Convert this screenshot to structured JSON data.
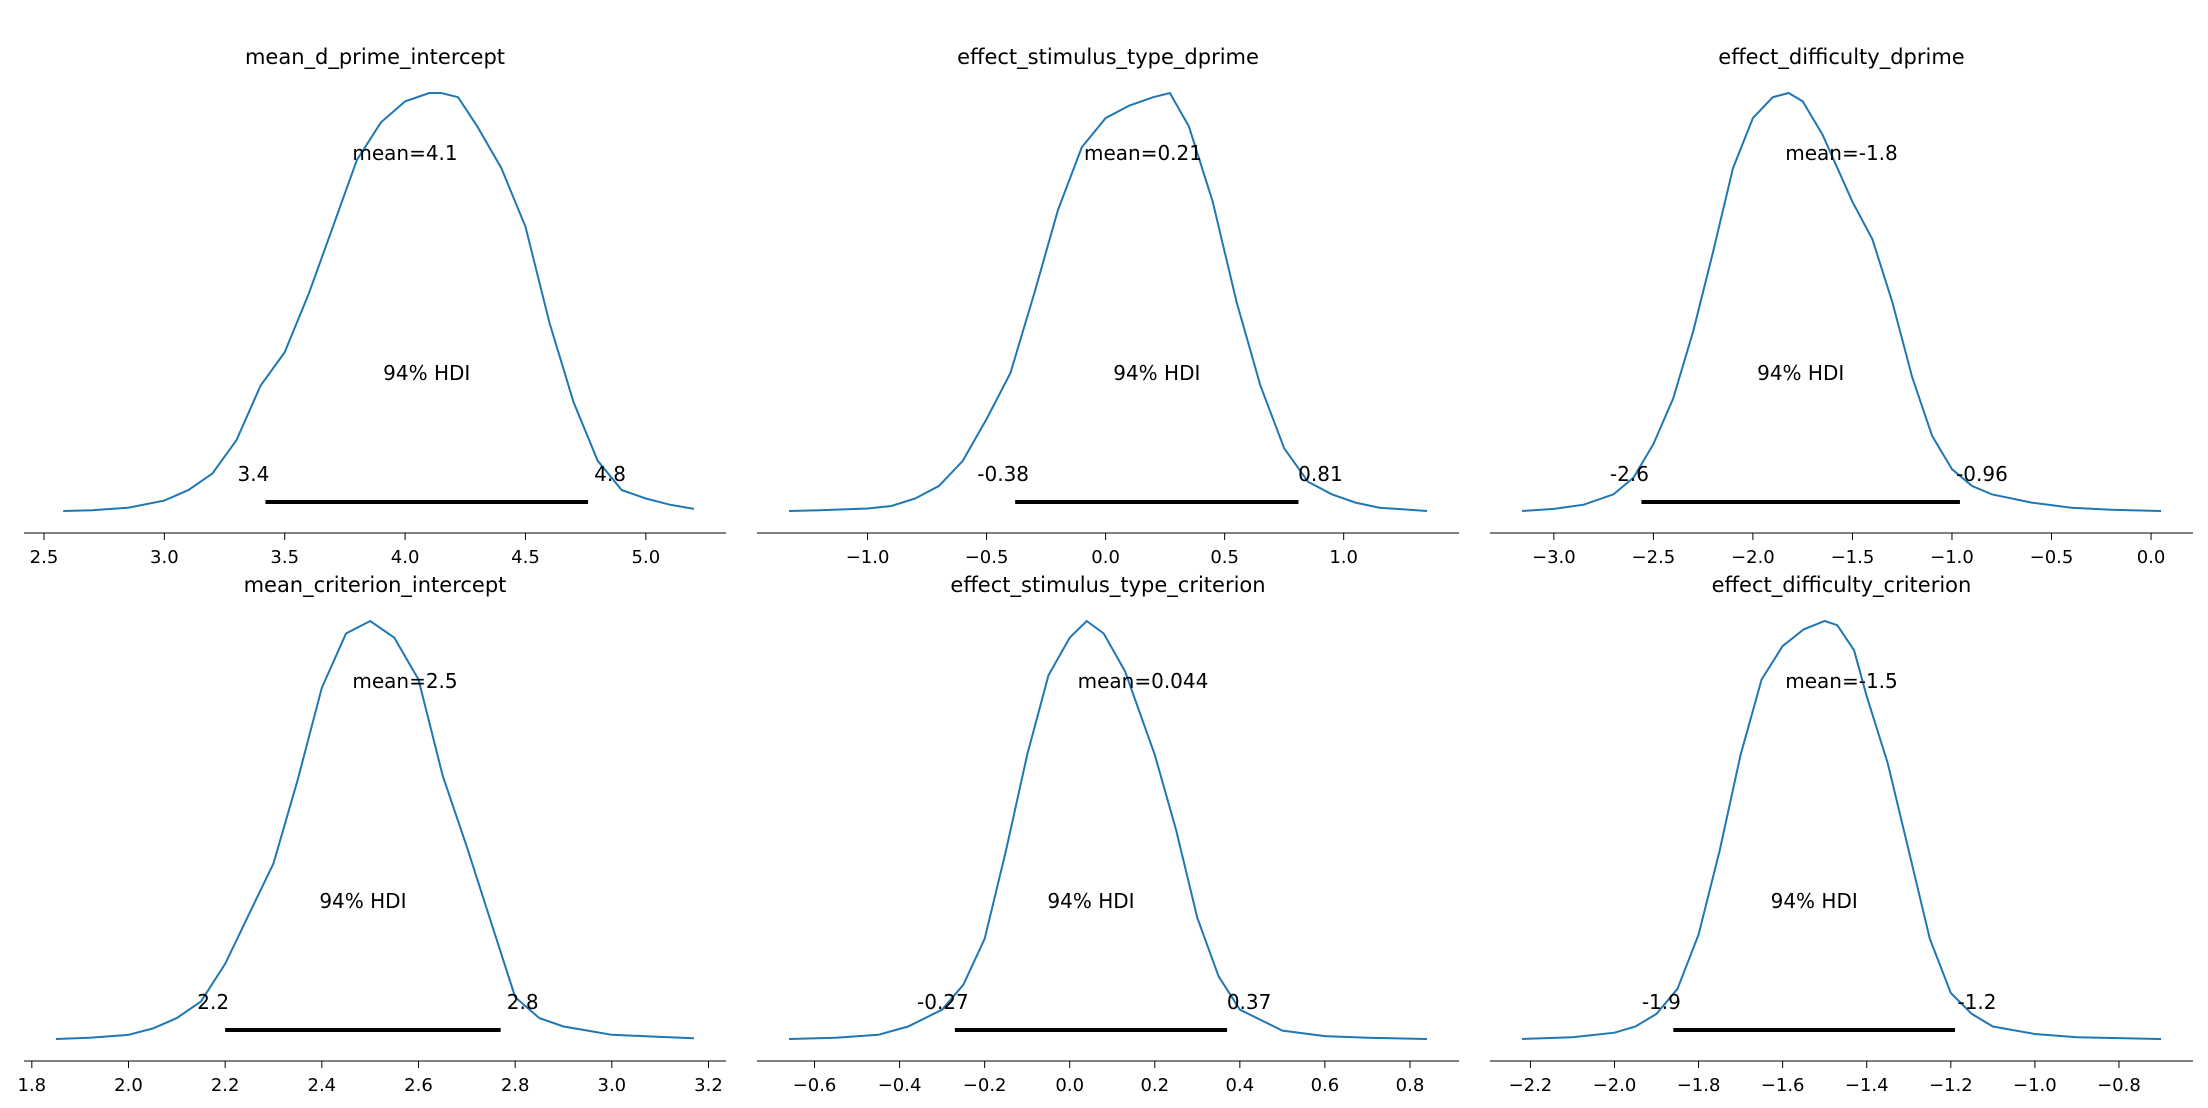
{
  "chart_data": [
    {
      "type": "line",
      "title": "mean_d_prime_intercept",
      "xlim": [
        2.55,
        5.2
      ],
      "ticks": [
        2.5,
        3.0,
        3.5,
        4.0,
        4.5,
        5.0
      ],
      "tick_labels": [
        "2.5",
        "3.0",
        "3.5",
        "4.0",
        "4.5",
        "5.0"
      ],
      "x": [
        2.58,
        2.7,
        2.85,
        3.0,
        3.1,
        3.2,
        3.3,
        3.4,
        3.5,
        3.6,
        3.7,
        3.8,
        3.9,
        4.0,
        4.1,
        4.15,
        4.22,
        4.3,
        4.4,
        4.5,
        4.6,
        4.7,
        4.8,
        4.9,
        5.0,
        5.1,
        5.2
      ],
      "density": [
        0.0,
        0.002,
        0.008,
        0.025,
        0.05,
        0.09,
        0.17,
        0.3,
        0.38,
        0.52,
        0.68,
        0.84,
        0.93,
        0.98,
        1.0,
        1.0,
        0.99,
        0.92,
        0.82,
        0.68,
        0.45,
        0.26,
        0.12,
        0.05,
        0.03,
        0.015,
        0.005
      ],
      "mean_label": "mean=4.1",
      "hdi_label": "94% HDI",
      "hdi": [
        3.42,
        4.76
      ],
      "hdi_low_label": "3.4",
      "hdi_high_label": "4.8"
    },
    {
      "type": "line",
      "title": "effect_stimulus_type_dprime",
      "xlim": [
        -1.33,
        1.35
      ],
      "ticks": [
        -1.0,
        -0.5,
        0.0,
        0.5,
        1.0
      ],
      "tick_labels": [
        "−1.0",
        "−0.5",
        "0.0",
        "0.5",
        "1.0"
      ],
      "x": [
        -1.33,
        -1.2,
        -1.0,
        -0.9,
        -0.8,
        -0.7,
        -0.6,
        -0.5,
        -0.4,
        -0.3,
        -0.2,
        -0.1,
        0.0,
        0.1,
        0.2,
        0.27,
        0.35,
        0.45,
        0.55,
        0.65,
        0.75,
        0.85,
        0.95,
        1.05,
        1.15,
        1.35
      ],
      "density": [
        0.0,
        0.002,
        0.006,
        0.012,
        0.03,
        0.06,
        0.12,
        0.22,
        0.33,
        0.52,
        0.72,
        0.87,
        0.94,
        0.97,
        0.99,
        1.0,
        0.92,
        0.74,
        0.5,
        0.3,
        0.15,
        0.07,
        0.04,
        0.02,
        0.008,
        0.0
      ],
      "mean_label": "mean=0.21",
      "hdi_label": "94% HDI",
      "hdi": [
        -0.38,
        0.81
      ],
      "hdi_low_label": "-0.38",
      "hdi_high_label": "0.81"
    },
    {
      "type": "line",
      "title": "effect_difficulty_dprime",
      "xlim": [
        -3.16,
        0.05
      ],
      "ticks": [
        -3.0,
        -2.5,
        -2.0,
        -1.5,
        -1.0,
        -0.5,
        0.0
      ],
      "tick_labels": [
        "−3.0",
        "−2.5",
        "−2.0",
        "−1.5",
        "−1.0",
        "−0.5",
        "0.0"
      ],
      "x": [
        -3.16,
        -3.0,
        -2.85,
        -2.7,
        -2.6,
        -2.5,
        -2.4,
        -2.3,
        -2.2,
        -2.1,
        -2.0,
        -1.9,
        -1.82,
        -1.75,
        -1.65,
        -1.5,
        -1.4,
        -1.3,
        -1.2,
        -1.1,
        -1.0,
        -0.9,
        -0.8,
        -0.6,
        -0.4,
        -0.2,
        0.05
      ],
      "density": [
        0.0,
        0.005,
        0.015,
        0.04,
        0.08,
        0.16,
        0.27,
        0.43,
        0.62,
        0.82,
        0.94,
        0.99,
        1.0,
        0.98,
        0.9,
        0.74,
        0.65,
        0.5,
        0.32,
        0.18,
        0.1,
        0.06,
        0.04,
        0.02,
        0.008,
        0.003,
        0.0
      ],
      "mean_label": "mean=-1.8",
      "hdi_label": "94% HDI",
      "hdi": [
        -2.56,
        -0.96
      ],
      "hdi_low_label": "-2.6",
      "hdi_high_label": "-0.96"
    },
    {
      "type": "line",
      "title": "mean_criterion_intercept",
      "xlim": [
        1.85,
        3.17
      ],
      "ticks": [
        1.8,
        2.0,
        2.2,
        2.4,
        2.6,
        2.8,
        3.0,
        3.2
      ],
      "tick_labels": [
        "1.8",
        "2.0",
        "2.2",
        "2.4",
        "2.6",
        "2.8",
        "3.0",
        "3.2"
      ],
      "x": [
        1.85,
        1.92,
        2.0,
        2.05,
        2.1,
        2.15,
        2.2,
        2.25,
        2.3,
        2.35,
        2.4,
        2.45,
        2.5,
        2.55,
        2.6,
        2.65,
        2.7,
        2.75,
        2.8,
        2.85,
        2.9,
        2.95,
        3.0,
        3.1,
        3.17
      ],
      "density": [
        0.0,
        0.003,
        0.01,
        0.025,
        0.05,
        0.09,
        0.18,
        0.3,
        0.42,
        0.62,
        0.84,
        0.97,
        1.0,
        0.96,
        0.86,
        0.63,
        0.46,
        0.28,
        0.1,
        0.05,
        0.03,
        0.02,
        0.01,
        0.005,
        0.002
      ],
      "mean_label": "mean=2.5",
      "hdi_label": "94% HDI",
      "hdi": [
        2.2,
        2.77
      ],
      "hdi_low_label": "2.2",
      "hdi_high_label": "2.8"
    },
    {
      "type": "line",
      "title": "effect_stimulus_type_criterion",
      "xlim": [
        -0.66,
        0.84
      ],
      "ticks": [
        -0.6,
        -0.4,
        -0.2,
        0.0,
        0.2,
        0.4,
        0.6,
        0.8
      ],
      "tick_labels": [
        "−0.6",
        "−0.4",
        "−0.2",
        "0.0",
        "0.2",
        "0.4",
        "0.6",
        "0.8"
      ],
      "x": [
        -0.66,
        -0.55,
        -0.45,
        -0.38,
        -0.3,
        -0.25,
        -0.2,
        -0.15,
        -0.1,
        -0.05,
        0.0,
        0.04,
        0.08,
        0.13,
        0.2,
        0.25,
        0.3,
        0.35,
        0.4,
        0.5,
        0.6,
        0.7,
        0.84
      ],
      "density": [
        0.0,
        0.003,
        0.01,
        0.03,
        0.07,
        0.13,
        0.24,
        0.45,
        0.68,
        0.87,
        0.96,
        1.0,
        0.97,
        0.88,
        0.68,
        0.5,
        0.29,
        0.15,
        0.07,
        0.02,
        0.007,
        0.003,
        0.0
      ],
      "mean_label": "mean=0.044",
      "hdi_label": "94% HDI",
      "hdi": [
        -0.27,
        0.37
      ],
      "hdi_low_label": "-0.27",
      "hdi_high_label": "0.37"
    },
    {
      "type": "line",
      "title": "effect_difficulty_criterion",
      "xlim": [
        -2.22,
        -0.7
      ],
      "ticks": [
        -2.2,
        -2.0,
        -1.8,
        -1.6,
        -1.4,
        -1.2,
        -1.0,
        -0.8
      ],
      "tick_labels": [
        "−2.2",
        "−2.0",
        "−1.8",
        "−1.6",
        "−1.4",
        "−1.2",
        "−1.0",
        "−0.8"
      ],
      "x": [
        -2.22,
        -2.1,
        -2.0,
        -1.95,
        -1.9,
        -1.85,
        -1.8,
        -1.75,
        -1.7,
        -1.65,
        -1.6,
        -1.55,
        -1.5,
        -1.47,
        -1.43,
        -1.4,
        -1.35,
        -1.3,
        -1.25,
        -1.2,
        -1.15,
        -1.1,
        -1.0,
        -0.9,
        -0.7
      ],
      "density": [
        0.0,
        0.004,
        0.015,
        0.03,
        0.06,
        0.12,
        0.25,
        0.45,
        0.68,
        0.86,
        0.94,
        0.98,
        1.0,
        0.99,
        0.93,
        0.82,
        0.66,
        0.45,
        0.24,
        0.11,
        0.06,
        0.03,
        0.012,
        0.004,
        0.0
      ],
      "mean_label": "mean=-1.5",
      "hdi_label": "94% HDI",
      "hdi": [
        -1.86,
        -1.19
      ],
      "hdi_low_label": "-1.9",
      "hdi_high_label": "-1.2"
    }
  ],
  "style": {
    "line_color": "#1f77b4",
    "hdi_color": "#000000",
    "axis_color": "#000000"
  }
}
